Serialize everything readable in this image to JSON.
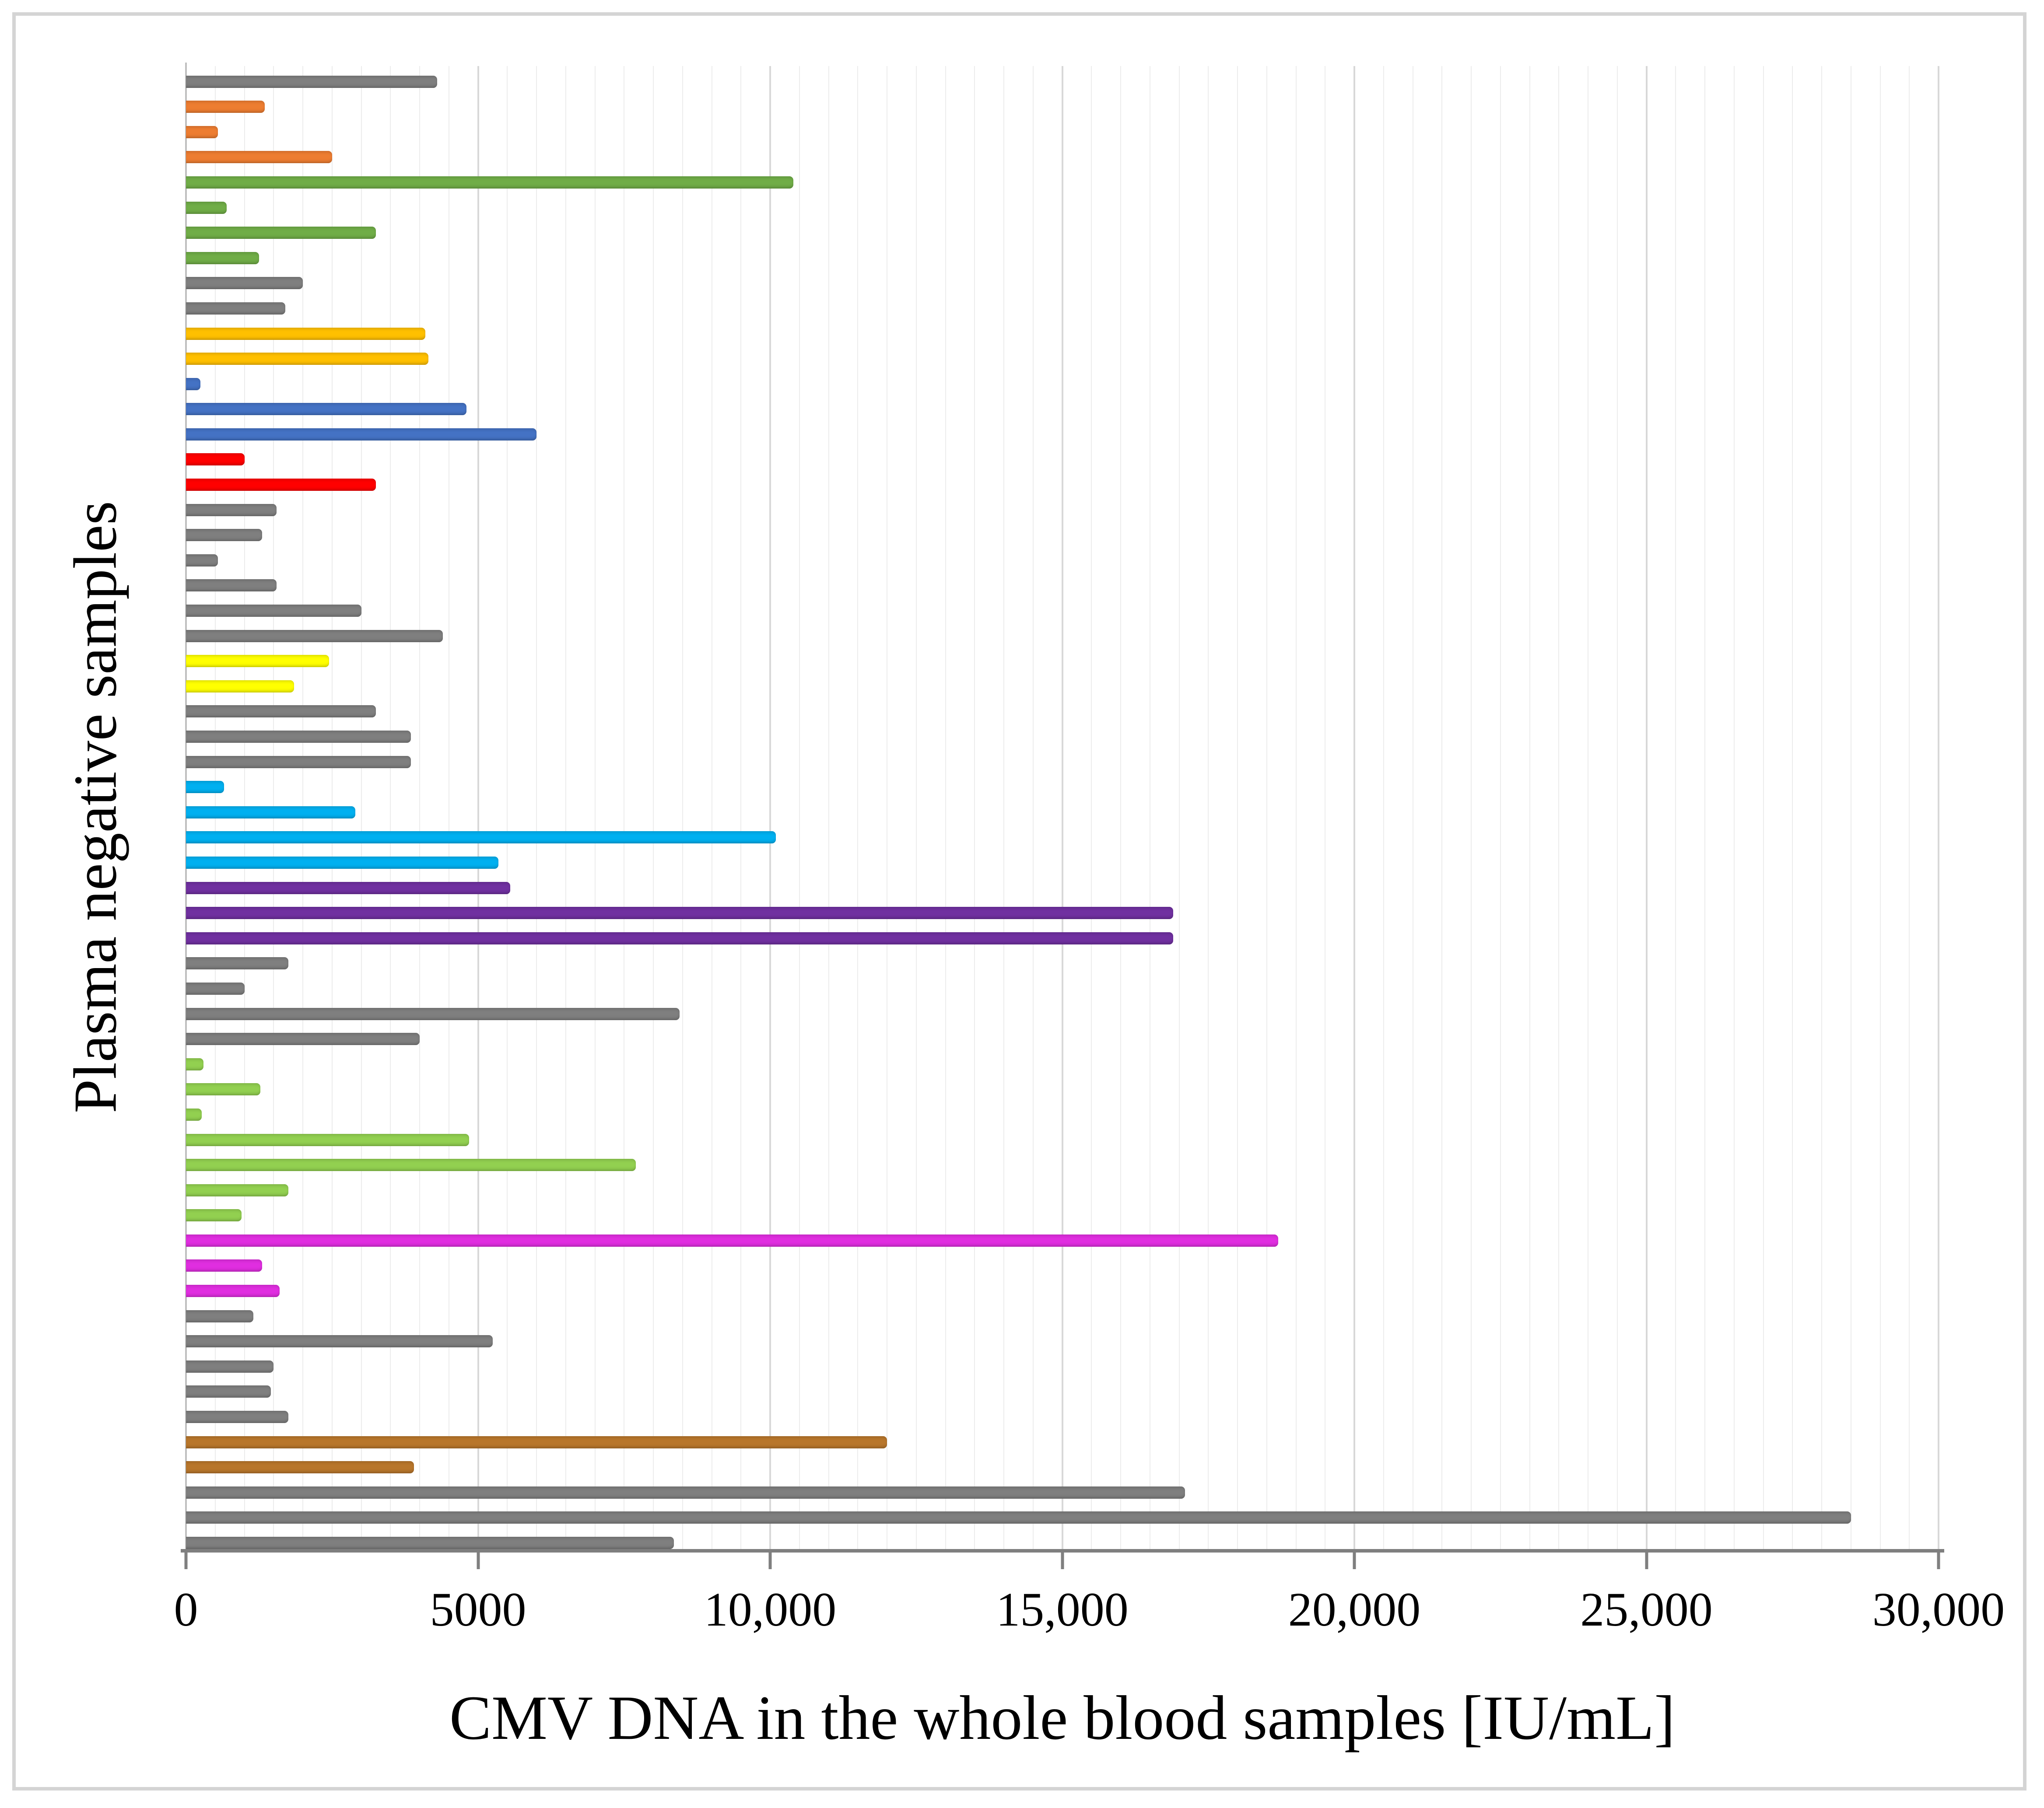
{
  "chart_data": {
    "type": "bar",
    "orientation": "horizontal",
    "title": "",
    "xlabel": "CMV DNA in the whole blood samples [IU/mL]",
    "ylabel": "Plasma negative samples",
    "xlim": [
      0,
      30000
    ],
    "x_ticks": [
      {
        "value": 0,
        "label": "0"
      },
      {
        "value": 5000,
        "label": "5000"
      },
      {
        "value": 10000,
        "label": "10,000"
      },
      {
        "value": 15000,
        "label": "15,000"
      },
      {
        "value": 20000,
        "label": "20,000"
      },
      {
        "value": 25000,
        "label": "25,000"
      },
      {
        "value": 30000,
        "label": "30,000"
      }
    ],
    "grid": {
      "minor_interval": 500,
      "major_interval": 5000,
      "visible": true
    },
    "legend_position": "none",
    "palette": {
      "gray": "#7f7f7f",
      "orange": "#ed7d31",
      "green": "#70ad47",
      "gold": "#ffc000",
      "blue": "#4472c4",
      "red": "#ff0000",
      "yellow": "#ffff00",
      "cyan": "#00b0f0",
      "purple": "#7030a0",
      "light_green": "#92d050",
      "magenta": "#e02ee0",
      "brown": "#b8762b"
    },
    "bars": [
      {
        "color": "gray",
        "value": 4300
      },
      {
        "color": "orange",
        "value": 1350
      },
      {
        "color": "orange",
        "value": 550
      },
      {
        "color": "orange",
        "value": 2500
      },
      {
        "color": "green",
        "value": 10400
      },
      {
        "color": "green",
        "value": 700
      },
      {
        "color": "green",
        "value": 3250
      },
      {
        "color": "green",
        "value": 1250
      },
      {
        "color": "gray",
        "value": 2000
      },
      {
        "color": "gray",
        "value": 1700
      },
      {
        "color": "gold",
        "value": 4100
      },
      {
        "color": "gold",
        "value": 4150
      },
      {
        "color": "blue",
        "value": 250
      },
      {
        "color": "blue",
        "value": 4800
      },
      {
        "color": "blue",
        "value": 6000
      },
      {
        "color": "red",
        "value": 1000
      },
      {
        "color": "red",
        "value": 3250
      },
      {
        "color": "gray",
        "value": 1550
      },
      {
        "color": "gray",
        "value": 1300
      },
      {
        "color": "gray",
        "value": 550
      },
      {
        "color": "gray",
        "value": 1550
      },
      {
        "color": "gray",
        "value": 3000
      },
      {
        "color": "gray",
        "value": 4400
      },
      {
        "color": "yellow",
        "value": 2450
      },
      {
        "color": "yellow",
        "value": 1850
      },
      {
        "color": "gray",
        "value": 3250
      },
      {
        "color": "gray",
        "value": 3850
      },
      {
        "color": "gray",
        "value": 3850
      },
      {
        "color": "cyan",
        "value": 650
      },
      {
        "color": "cyan",
        "value": 2900
      },
      {
        "color": "cyan",
        "value": 10100
      },
      {
        "color": "cyan",
        "value": 5350
      },
      {
        "color": "purple",
        "value": 5550
      },
      {
        "color": "purple",
        "value": 16900
      },
      {
        "color": "purple",
        "value": 16900
      },
      {
        "color": "gray",
        "value": 1750
      },
      {
        "color": "gray",
        "value": 1000
      },
      {
        "color": "gray",
        "value": 8450
      },
      {
        "color": "gray",
        "value": 4000
      },
      {
        "color": "light_green",
        "value": 300
      },
      {
        "color": "light_green",
        "value": 1270
      },
      {
        "color": "light_green",
        "value": 270
      },
      {
        "color": "light_green",
        "value": 4850
      },
      {
        "color": "light_green",
        "value": 7700
      },
      {
        "color": "light_green",
        "value": 1750
      },
      {
        "color": "light_green",
        "value": 950
      },
      {
        "color": "magenta",
        "value": 18700
      },
      {
        "color": "magenta",
        "value": 1300
      },
      {
        "color": "magenta",
        "value": 1600
      },
      {
        "color": "gray",
        "value": 1150
      },
      {
        "color": "gray",
        "value": 5250
      },
      {
        "color": "gray",
        "value": 1500
      },
      {
        "color": "gray",
        "value": 1450
      },
      {
        "color": "gray",
        "value": 1750
      },
      {
        "color": "brown",
        "value": 12000
      },
      {
        "color": "brown",
        "value": 3900
      },
      {
        "color": "gray",
        "value": 17100
      },
      {
        "color": "gray",
        "value": 28500
      },
      {
        "color": "gray",
        "value": 8350
      }
    ]
  }
}
